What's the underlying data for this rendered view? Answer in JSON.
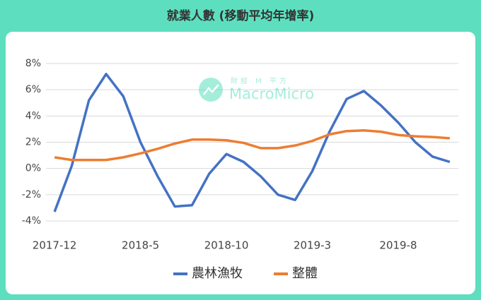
{
  "chart_data": {
    "type": "line",
    "title": "就業人數 (移動平均年增率)",
    "watermark": {
      "top": "財經 M 平方",
      "brand": "MacroMicro"
    },
    "categories": [
      "2017-12",
      null,
      null,
      null,
      null,
      "2018-5",
      null,
      null,
      null,
      null,
      "2018-10",
      null,
      null,
      null,
      null,
      "2019-3",
      null,
      null,
      null,
      null,
      "2019-8",
      null,
      null,
      null
    ],
    "series": [
      {
        "name": "農林漁牧",
        "color": "#4472c4",
        "values": [
          -3.3,
          0.2,
          5.2,
          7.2,
          5.5,
          2.0,
          -0.6,
          -2.9,
          -2.8,
          -0.4,
          1.1,
          0.5,
          -0.6,
          -2.0,
          -2.4,
          -0.2,
          2.8,
          5.3,
          5.9,
          4.8,
          3.5,
          2.0,
          0.9,
          0.5
        ]
      },
      {
        "name": "整體",
        "color": "#ed7d31",
        "values": [
          0.85,
          0.65,
          0.65,
          0.65,
          0.85,
          1.15,
          1.5,
          1.9,
          2.2,
          2.2,
          2.15,
          1.95,
          1.55,
          1.55,
          1.75,
          2.1,
          2.6,
          2.85,
          2.9,
          2.8,
          2.55,
          2.45,
          2.4,
          2.3
        ]
      }
    ],
    "ylim": [
      -4,
      8
    ],
    "yticks": [
      {
        "value": -4,
        "label": "-4%"
      },
      {
        "value": -2,
        "label": "-2%"
      },
      {
        "value": 0,
        "label": "0%"
      },
      {
        "value": 2,
        "label": "2%"
      },
      {
        "value": 4,
        "label": "4%"
      },
      {
        "value": 6,
        "label": "6%"
      },
      {
        "value": 8,
        "label": "8%"
      }
    ],
    "grid": true,
    "legend": "bottom"
  }
}
